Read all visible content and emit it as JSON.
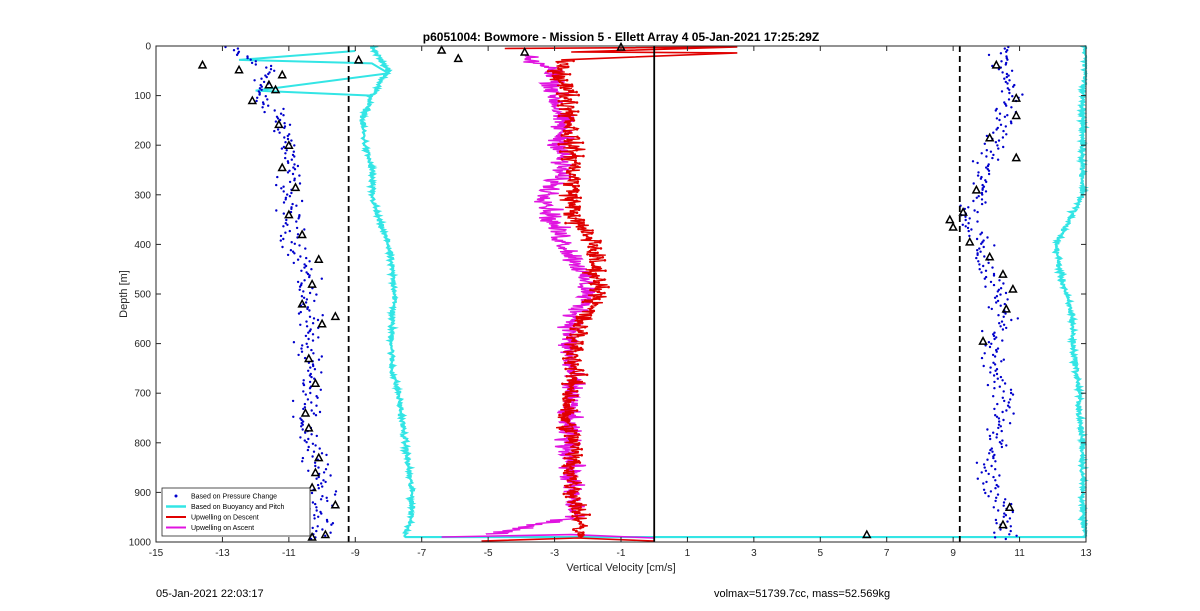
{
  "footer": {
    "timestamp": "05-Jan-2021 22:03:17",
    "stats": "volmax=51739.7cc, mass=52.569kg"
  },
  "chart_data": {
    "type": "scatter",
    "title": "p6051004: Bowmore - Mission 5 - Ellett Array 4 05-Jan-2021 17:25:29Z",
    "xlabel": "Vertical Velocity [cm/s]",
    "ylabel": "Depth [m]",
    "xlim": [
      -15,
      13
    ],
    "ylim": [
      0,
      1000
    ],
    "y_reversed": true,
    "x_ticks": [
      -15,
      -13,
      -11,
      -9,
      -7,
      -5,
      -3,
      -1,
      1,
      3,
      5,
      7,
      9,
      11,
      13
    ],
    "y_ticks": [
      0,
      100,
      200,
      300,
      400,
      500,
      600,
      700,
      800,
      900,
      1000
    ],
    "grid": false,
    "legend_position": "bottom-left",
    "reference_lines": [
      {
        "x": -9.2,
        "style": "dashed"
      },
      {
        "x": 9.2,
        "style": "dashed"
      },
      {
        "x": 0,
        "style": "solid"
      }
    ],
    "series": [
      {
        "name": "Based on Pressure Change",
        "style": "dots",
        "color": "#0000cc",
        "branches": [
          {
            "depth": [
              0,
              50,
              100,
              150,
              200,
              250,
              300,
              350,
              400,
              450,
              500,
              550,
              600,
              650,
              700,
              750,
              800,
              850,
              900,
              950,
              1000
            ],
            "velocity": [
              -13.0,
              -11.5,
              -12.0,
              -11.2,
              -11.0,
              -11.0,
              -11.0,
              -11.0,
              -10.8,
              -10.5,
              -10.5,
              -10.3,
              -10.5,
              -10.4,
              -10.4,
              -10.5,
              -10.3,
              -10.0,
              -10.0,
              -10.0,
              -10.2
            ]
          },
          {
            "depth": [
              0,
              50,
              100,
              150,
              200,
              250,
              300,
              350,
              400,
              450,
              500,
              550,
              600,
              650,
              700,
              750,
              800,
              850,
              900,
              950,
              1000
            ],
            "velocity": [
              10.5,
              10.5,
              10.8,
              10.5,
              10.2,
              10.0,
              9.8,
              9.5,
              9.8,
              10.0,
              10.3,
              10.5,
              10.2,
              10.3,
              10.5,
              10.5,
              10.3,
              10.0,
              10.3,
              10.5,
              10.5
            ]
          }
        ]
      },
      {
        "name": "Based on Buoyancy and Pitch",
        "style": "line",
        "color": "#33e5e5",
        "branches": [
          {
            "depth": [
              0,
              50,
              100,
              150,
              200,
              250,
              300,
              350,
              400,
              450,
              500,
              550,
              600,
              650,
              700,
              750,
              800,
              850,
              900,
              950,
              990
            ],
            "velocity": [
              -8.5,
              -8.0,
              -8.5,
              -8.8,
              -8.7,
              -8.5,
              -8.5,
              -8.3,
              -8.0,
              -7.9,
              -7.8,
              -7.9,
              -7.9,
              -7.9,
              -7.7,
              -7.6,
              -7.5,
              -7.4,
              -7.3,
              -7.3,
              -7.5
            ]
          },
          {
            "depth": [
              0,
              50,
              100,
              150,
              200,
              250,
              300,
              350,
              400,
              450,
              500,
              550,
              600,
              650,
              700,
              750,
              800,
              850,
              900,
              950,
              990
            ],
            "velocity": [
              13.0,
              13.0,
              12.9,
              12.9,
              12.9,
              12.9,
              12.9,
              12.5,
              12.1,
              12.2,
              12.4,
              12.6,
              12.6,
              12.7,
              12.8,
              12.8,
              12.9,
              12.9,
              12.9,
              12.9,
              13.0
            ]
          }
        ]
      },
      {
        "name": "Upwelling on Descent",
        "style": "line-markers",
        "color": "#e00000",
        "depth": [
          0,
          10,
          30,
          60,
          100,
          150,
          200,
          250,
          300,
          350,
          400,
          450,
          500,
          550,
          600,
          650,
          700,
          750,
          800,
          850,
          900,
          950,
          990
        ],
        "velocity": [
          -2.5,
          0.5,
          -2.8,
          -2.8,
          -2.6,
          -2.5,
          -2.5,
          -2.4,
          -2.5,
          -2.4,
          -1.8,
          -1.8,
          -1.6,
          -2.2,
          -2.4,
          -2.4,
          -2.5,
          -2.7,
          -2.4,
          -2.5,
          -2.4,
          -2.2,
          -2.3
        ]
      },
      {
        "name": "Upwelling on Ascent",
        "style": "line",
        "color": "#e014e0",
        "depth": [
          0,
          20,
          50,
          100,
          150,
          200,
          250,
          300,
          350,
          400,
          450,
          500,
          550,
          600,
          650,
          700,
          750,
          800,
          850,
          900,
          950,
          985
        ],
        "velocity": [
          -2.0,
          -4.0,
          -3.0,
          -3.0,
          -2.8,
          -2.8,
          -2.8,
          -3.2,
          -3.1,
          -2.7,
          -2.2,
          -2.0,
          -2.4,
          -2.6,
          -2.5,
          -2.5,
          -2.6,
          -2.6,
          -2.5,
          -2.5,
          -2.4,
          -5.0
        ]
      }
    ],
    "outlier_markers": {
      "style": "triangle",
      "color": "#000000",
      "points": [
        {
          "x": -13.6,
          "y": 38
        },
        {
          "x": -12.5,
          "y": 48
        },
        {
          "x": -11.2,
          "y": 58
        },
        {
          "x": -11.6,
          "y": 78
        },
        {
          "x": -11.4,
          "y": 88
        },
        {
          "x": -12.1,
          "y": 110
        },
        {
          "x": -11.3,
          "y": 158
        },
        {
          "x": -11.0,
          "y": 200
        },
        {
          "x": -11.2,
          "y": 245
        },
        {
          "x": -10.8,
          "y": 285
        },
        {
          "x": -11.0,
          "y": 340
        },
        {
          "x": -10.6,
          "y": 380
        },
        {
          "x": -10.1,
          "y": 430
        },
        {
          "x": -10.3,
          "y": 480
        },
        {
          "x": -10.6,
          "y": 520
        },
        {
          "x": -10.0,
          "y": 560
        },
        {
          "x": -9.6,
          "y": 545
        },
        {
          "x": -10.4,
          "y": 630
        },
        {
          "x": -10.2,
          "y": 680
        },
        {
          "x": -10.5,
          "y": 740
        },
        {
          "x": -10.4,
          "y": 770
        },
        {
          "x": -10.1,
          "y": 830
        },
        {
          "x": -10.2,
          "y": 860
        },
        {
          "x": -10.3,
          "y": 890
        },
        {
          "x": -9.6,
          "y": 925
        },
        {
          "x": -9.9,
          "y": 985
        },
        {
          "x": -10.3,
          "y": 990
        },
        {
          "x": -6.4,
          "y": 8
        },
        {
          "x": -5.9,
          "y": 25
        },
        {
          "x": -3.9,
          "y": 12
        },
        {
          "x": -8.9,
          "y": 28
        },
        {
          "x": -1.0,
          "y": 2
        },
        {
          "x": 6.4,
          "y": 985
        },
        {
          "x": 10.3,
          "y": 38
        },
        {
          "x": 10.9,
          "y": 105
        },
        {
          "x": 10.9,
          "y": 140
        },
        {
          "x": 10.1,
          "y": 185
        },
        {
          "x": 10.9,
          "y": 225
        },
        {
          "x": 9.7,
          "y": 290
        },
        {
          "x": 9.3,
          "y": 335
        },
        {
          "x": 8.9,
          "y": 350
        },
        {
          "x": 9.0,
          "y": 365
        },
        {
          "x": 9.5,
          "y": 395
        },
        {
          "x": 10.1,
          "y": 425
        },
        {
          "x": 10.5,
          "y": 460
        },
        {
          "x": 10.8,
          "y": 490
        },
        {
          "x": 10.6,
          "y": 530
        },
        {
          "x": 9.9,
          "y": 595
        },
        {
          "x": 10.7,
          "y": 930
        },
        {
          "x": 10.5,
          "y": 965
        }
      ]
    }
  }
}
